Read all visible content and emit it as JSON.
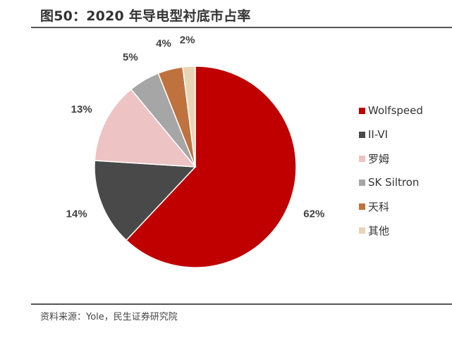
{
  "title": "图50：2020 年导电型衬底市占率",
  "source": "资料来源：Yole，民生证券研究院",
  "chart_data": {
    "type": "pie",
    "title": "图50：2020 年导电型衬底市占率",
    "start_angle_deg": 0,
    "direction": "clockwise",
    "legend_position": "right",
    "slices": [
      {
        "name": "Wolfspeed",
        "value": 62,
        "label": "62%",
        "color": "#C00000"
      },
      {
        "name": "II-VI",
        "value": 14,
        "label": "14%",
        "color": "#494949"
      },
      {
        "name": "罗姆",
        "value": 13,
        "label": "13%",
        "color": "#EDC3C3"
      },
      {
        "name": "SK Siltron",
        "value": 5,
        "label": "5%",
        "color": "#A6A6A6"
      },
      {
        "name": "天科",
        "value": 4,
        "label": "4%",
        "color": "#C0723E"
      },
      {
        "name": "其他",
        "value": 2,
        "label": "2%",
        "color": "#E8D5B5"
      }
    ]
  }
}
